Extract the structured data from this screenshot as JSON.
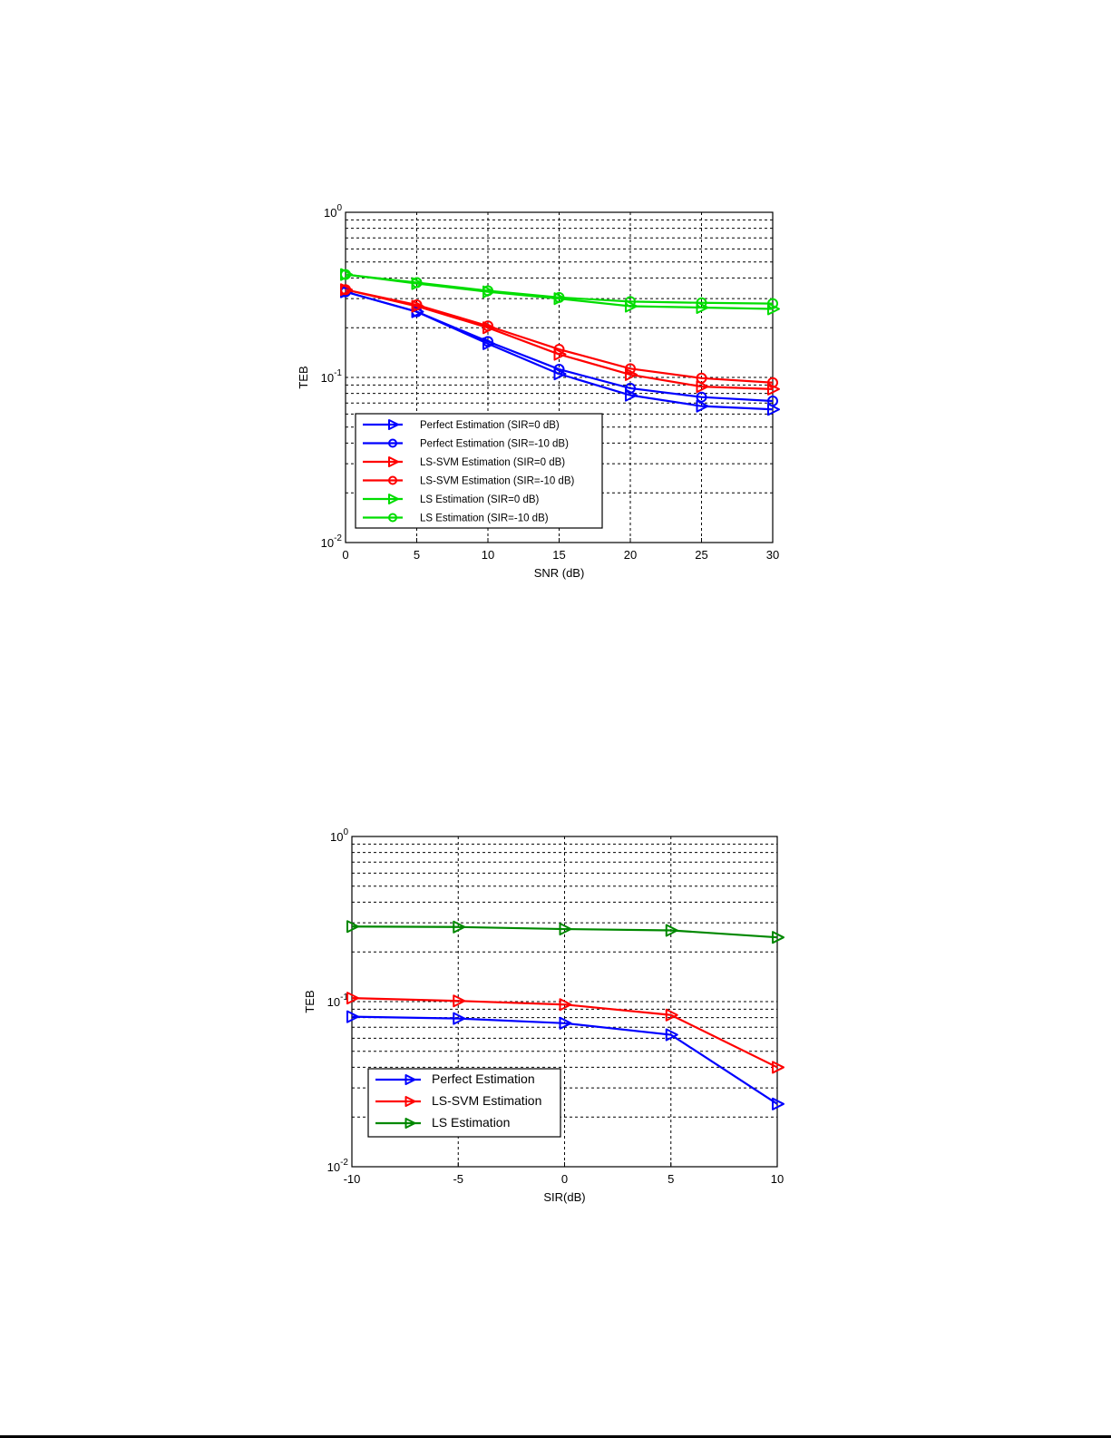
{
  "chart_data": [
    {
      "type": "line",
      "xlabel": "SNR (dB)",
      "ylabel": "TEB",
      "yscale": "log",
      "xlim": [
        0,
        30
      ],
      "ylim": [
        0.01,
        1
      ],
      "x_ticks": [
        0,
        5,
        10,
        15,
        20,
        25,
        30
      ],
      "y_ticks": [
        0.01,
        0.1,
        1
      ],
      "grid": true,
      "legend_position": "bottom-left",
      "x": [
        0,
        5,
        10,
        15,
        20,
        25,
        30
      ],
      "series": [
        {
          "name": "Perfect Estimation (SIR=0 dB)",
          "color": "#0000ff",
          "marker": "triangle-right",
          "values": [
            0.33,
            0.25,
            0.16,
            0.105,
            0.078,
            0.067,
            0.064
          ]
        },
        {
          "name": "Perfect Estimation (SIR=-10 dB)",
          "color": "#0000ff",
          "marker": "circle",
          "values": [
            0.33,
            0.25,
            0.165,
            0.112,
            0.086,
            0.076,
            0.072
          ]
        },
        {
          "name": "LS-SVM Estimation (SIR=0 dB)",
          "color": "#ff0000",
          "marker": "triangle-right",
          "values": [
            0.34,
            0.27,
            0.2,
            0.138,
            0.104,
            0.088,
            0.085
          ]
        },
        {
          "name": "LS-SVM Estimation (SIR=-10 dB)",
          "color": "#ff0000",
          "marker": "circle",
          "values": [
            0.34,
            0.275,
            0.205,
            0.148,
            0.113,
            0.099,
            0.093
          ]
        },
        {
          "name": "LS Estimation (SIR=0 dB)",
          "color": "#00dd00",
          "marker": "triangle-right",
          "values": [
            0.42,
            0.37,
            0.33,
            0.3,
            0.27,
            0.265,
            0.26
          ]
        },
        {
          "name": "LS Estimation (SIR=-10 dB)",
          "color": "#00dd00",
          "marker": "circle",
          "values": [
            0.42,
            0.375,
            0.335,
            0.305,
            0.288,
            0.283,
            0.28
          ]
        }
      ]
    },
    {
      "type": "line",
      "xlabel": "SIR(dB)",
      "ylabel": "TEB",
      "yscale": "log",
      "xlim": [
        -10,
        10
      ],
      "ylim": [
        0.01,
        1
      ],
      "x_ticks": [
        -10,
        -5,
        0,
        5,
        10
      ],
      "y_ticks": [
        0.01,
        0.1,
        1
      ],
      "grid": true,
      "legend_position": "bottom-left",
      "x": [
        -10,
        -5,
        0,
        5,
        10
      ],
      "series": [
        {
          "name": "Perfect Estimation",
          "color": "#0000ff",
          "marker": "triangle-right",
          "values": [
            0.081,
            0.079,
            0.074,
            0.063,
            0.024
          ]
        },
        {
          "name": "LS-SVM Estimation",
          "color": "#ff0000",
          "marker": "triangle-right",
          "values": [
            0.105,
            0.101,
            0.096,
            0.083,
            0.04
          ]
        },
        {
          "name": "LS Estimation",
          "color": "#008800",
          "marker": "triangle-right",
          "values": [
            0.285,
            0.283,
            0.275,
            0.27,
            0.245
          ]
        }
      ]
    }
  ]
}
